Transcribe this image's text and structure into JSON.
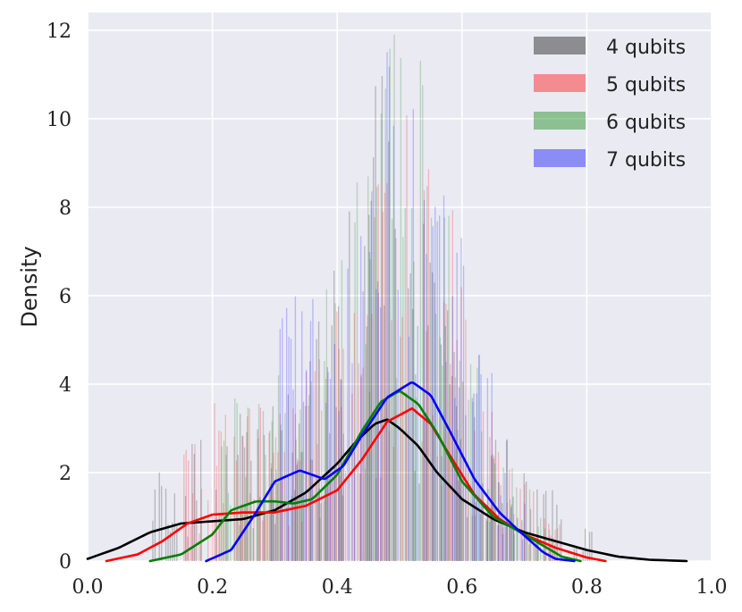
{
  "chart_data": {
    "type": "histogram-kde",
    "title": "",
    "xlabel": "",
    "ylabel": "Density",
    "xlim": [
      0.0,
      1.0
    ],
    "ylim": [
      0,
      12.4
    ],
    "xticks": [
      0.0,
      0.2,
      0.4,
      0.6,
      0.8,
      1.0
    ],
    "xtick_labels": [
      "0.0",
      "0.2",
      "0.4",
      "0.6",
      "0.8",
      "1.0"
    ],
    "yticks": [
      0,
      2,
      4,
      6,
      8,
      10,
      12
    ],
    "ytick_labels": [
      "0",
      "2",
      "4",
      "6",
      "8",
      "10",
      "12"
    ],
    "grid": true,
    "background": "#eaeaf2",
    "legend_position": "top-right",
    "series": [
      {
        "name": "4 qubits",
        "color": "#000000",
        "fill_opacity": 0.4,
        "range": [
          0.1,
          0.81
        ],
        "bin_width": 0.0035,
        "kde": {
          "x": [
            0.0,
            0.05,
            0.1,
            0.15,
            0.2,
            0.25,
            0.3,
            0.35,
            0.4,
            0.43,
            0.46,
            0.48,
            0.5,
            0.53,
            0.56,
            0.6,
            0.65,
            0.7,
            0.75,
            0.8,
            0.85,
            0.9,
            0.96
          ],
          "y": [
            0.05,
            0.3,
            0.65,
            0.85,
            0.9,
            0.95,
            1.15,
            1.55,
            2.2,
            2.7,
            3.1,
            3.2,
            3.0,
            2.6,
            2.0,
            1.4,
            0.95,
            0.65,
            0.45,
            0.25,
            0.1,
            0.03,
            0.0
          ]
        }
      },
      {
        "name": "5 qubits",
        "color": "#ff0000",
        "fill_opacity": 0.4,
        "range": [
          0.15,
          0.76
        ],
        "bin_width": 0.0035,
        "kde": {
          "x": [
            0.03,
            0.08,
            0.12,
            0.16,
            0.2,
            0.25,
            0.3,
            0.35,
            0.4,
            0.44,
            0.48,
            0.52,
            0.55,
            0.58,
            0.62,
            0.66,
            0.7,
            0.75,
            0.8,
            0.83
          ],
          "y": [
            0.0,
            0.15,
            0.45,
            0.85,
            1.05,
            1.1,
            1.1,
            1.25,
            1.6,
            2.3,
            3.15,
            3.45,
            3.1,
            2.4,
            1.5,
            0.95,
            0.6,
            0.3,
            0.08,
            0.0
          ]
        }
      },
      {
        "name": "6 qubits",
        "color": "#008000",
        "fill_opacity": 0.4,
        "range": [
          0.2,
          0.74
        ],
        "bin_width": 0.0035,
        "kde": {
          "x": [
            0.1,
            0.15,
            0.2,
            0.23,
            0.27,
            0.3,
            0.33,
            0.36,
            0.4,
            0.44,
            0.47,
            0.5,
            0.53,
            0.56,
            0.6,
            0.65,
            0.7,
            0.73,
            0.76,
            0.79
          ],
          "y": [
            0.0,
            0.15,
            0.6,
            1.15,
            1.35,
            1.35,
            1.3,
            1.4,
            1.95,
            2.95,
            3.6,
            3.85,
            3.55,
            2.9,
            1.8,
            1.0,
            0.6,
            0.35,
            0.1,
            0.0
          ]
        }
      },
      {
        "name": "7 qubits",
        "color": "#0000ff",
        "fill_opacity": 0.4,
        "range": [
          0.29,
          0.7
        ],
        "bin_width": 0.0035,
        "kde": {
          "x": [
            0.19,
            0.23,
            0.27,
            0.3,
            0.34,
            0.38,
            0.41,
            0.44,
            0.48,
            0.52,
            0.55,
            0.58,
            0.62,
            0.66,
            0.69,
            0.71,
            0.73,
            0.75,
            0.78
          ],
          "y": [
            0.0,
            0.25,
            1.1,
            1.8,
            2.05,
            1.85,
            2.15,
            2.85,
            3.7,
            4.05,
            3.75,
            2.95,
            1.85,
            1.1,
            0.7,
            0.45,
            0.2,
            0.05,
            0.0
          ]
        }
      }
    ]
  }
}
